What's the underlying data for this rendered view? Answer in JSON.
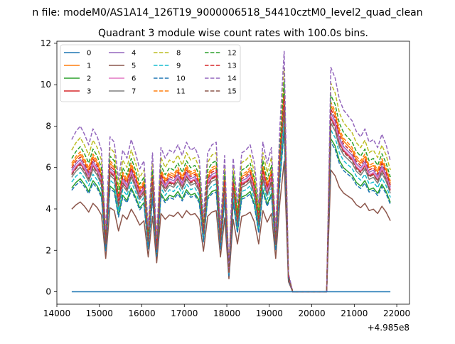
{
  "figure": {
    "suptitle": "n file: modeM0/AS1A14_126T19_9000006518_54410cztM0_level2_quad_clean",
    "offset_label": "+4.985e8"
  },
  "chart_data": {
    "type": "line",
    "title": "Quadrant 3 module wise count rates with 100.0s bins.",
    "xlabel": "",
    "ylabel": "",
    "xlim": [
      14000,
      22300
    ],
    "ylim": [
      -0.6,
      12.1
    ],
    "x_offset": 498500000,
    "xticks": [
      14000,
      15000,
      16000,
      17000,
      18000,
      19000,
      20000,
      21000,
      22000
    ],
    "xtick_labels": [
      "14000",
      "15000",
      "16000",
      "17000",
      "18000",
      "19000",
      "20000",
      "21000",
      "22000"
    ],
    "yticks": [
      0,
      2,
      4,
      6,
      8,
      10,
      12
    ],
    "ytick_labels": [
      "0",
      "2",
      "4",
      "6",
      "8",
      "10",
      "12"
    ],
    "grid": false,
    "legend_placement": "top-left",
    "legend_columns": 4,
    "x": [
      14350,
      14450,
      14550,
      14650,
      14750,
      14850,
      14950,
      15050,
      15150,
      15250,
      15350,
      15450,
      15550,
      15650,
      15750,
      15850,
      15950,
      16050,
      16150,
      16250,
      16350,
      16450,
      16550,
      16650,
      16750,
      16850,
      16950,
      17050,
      17150,
      17250,
      17350,
      17450,
      17550,
      17650,
      17750,
      17850,
      17950,
      18050,
      18150,
      18250,
      18350,
      18450,
      18550,
      18650,
      18750,
      18850,
      18950,
      19050,
      19150,
      19250,
      19350,
      19450,
      19550,
      19650,
      19750,
      19850,
      19950,
      20050,
      20150,
      20250,
      20350,
      20450,
      20550,
      20650,
      20750,
      20850,
      20950,
      21050,
      21150,
      21250,
      21350,
      21450,
      21550,
      21650,
      21750,
      21850
    ],
    "base_profile": [
      5.7,
      6.0,
      6.2,
      5.9,
      5.5,
      6.1,
      5.8,
      5.3,
      2.3,
      5.8,
      5.6,
      4.2,
      5.3,
      5.0,
      5.7,
      5.2,
      4.6,
      4.9,
      2.4,
      5.2,
      2.0,
      5.4,
      5.0,
      5.3,
      5.2,
      5.5,
      5.1,
      5.6,
      5.3,
      5.4,
      5.0,
      2.8,
      5.2,
      5.5,
      5.6,
      2.4,
      5.1,
      0.9,
      5.0,
      3.3,
      5.2,
      5.3,
      5.5,
      4.8,
      3.3,
      5.6,
      4.8,
      5.4,
      2.3,
      6.2,
      9.0,
      0.7,
      0.0,
      0.0,
      0.0,
      0.0,
      0.0,
      0.0,
      0.0,
      0.0,
      0.0,
      8.4,
      8.0,
      7.2,
      6.8,
      6.6,
      6.4,
      6.0,
      5.8,
      6.1,
      5.6,
      5.7,
      5.4,
      5.9,
      5.5,
      4.9
    ],
    "series": [
      {
        "name": "0",
        "color": "#1f77b4",
        "dash": "solid",
        "scale": 0.0
      },
      {
        "name": "1",
        "color": "#ff7f0e",
        "dash": "solid",
        "scale": 1.07
      },
      {
        "name": "2",
        "color": "#2ca02c",
        "dash": "solid",
        "scale": 0.88
      },
      {
        "name": "3",
        "color": "#d62728",
        "dash": "solid",
        "scale": 1.0
      },
      {
        "name": "4",
        "color": "#9467bd",
        "dash": "solid",
        "scale": 1.03
      },
      {
        "name": "5",
        "color": "#8c564b",
        "dash": "solid",
        "scale": 0.7
      },
      {
        "name": "6",
        "color": "#e377c2",
        "dash": "solid",
        "scale": 1.01
      },
      {
        "name": "7",
        "color": "#7f7f7f",
        "dash": "solid",
        "scale": 0.97
      },
      {
        "name": "8",
        "color": "#bcbd22",
        "dash": "dashed",
        "scale": 1.2
      },
      {
        "name": "9",
        "color": "#17becf",
        "dash": "dashed",
        "scale": 0.93
      },
      {
        "name": "10",
        "color": "#1f77b4",
        "dash": "dashed",
        "scale": 0.86
      },
      {
        "name": "11",
        "color": "#ff7f0e",
        "dash": "dashed",
        "scale": 1.09
      },
      {
        "name": "12",
        "color": "#2ca02c",
        "dash": "dashed",
        "scale": 1.13
      },
      {
        "name": "13",
        "color": "#d62728",
        "dash": "dashed",
        "scale": 1.05
      },
      {
        "name": "14",
        "color": "#9467bd",
        "dash": "dashed",
        "scale": 1.29
      },
      {
        "name": "15",
        "color": "#8c564b",
        "dash": "dashed",
        "scale": 0.99
      }
    ]
  }
}
